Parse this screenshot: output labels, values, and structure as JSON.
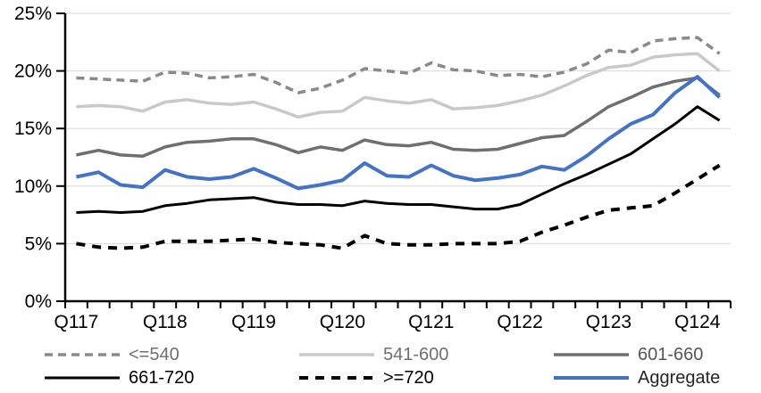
{
  "chart_data": {
    "type": "line",
    "title": "",
    "grid": true,
    "legend_position": "bottom",
    "axis_color": "#000000",
    "gridline_color": "#d9d9d9",
    "y_axis": {
      "min": 0,
      "max": 25,
      "step": 5,
      "format": "percent",
      "tick_values": [
        0,
        5,
        10,
        15,
        20,
        25
      ],
      "labels": [
        "0%",
        "5%",
        "10%",
        "15%",
        "20%",
        "25%"
      ]
    },
    "x_axis": {
      "tick_labels": [
        "Q117",
        "Q118",
        "Q119",
        "Q120",
        "Q121",
        "Q122",
        "Q123",
        "Q124"
      ],
      "label_every_n_points": 4
    },
    "categories": [
      "Q117",
      "Q217",
      "Q317",
      "Q417",
      "Q118",
      "Q218",
      "Q318",
      "Q418",
      "Q119",
      "Q219",
      "Q319",
      "Q419",
      "Q120",
      "Q220",
      "Q320",
      "Q420",
      "Q121",
      "Q221",
      "Q321",
      "Q421",
      "Q122",
      "Q222",
      "Q322",
      "Q422",
      "Q123",
      "Q223",
      "Q323",
      "Q423",
      "Q124",
      "Q224"
    ],
    "series": [
      {
        "name": "<=540",
        "color": "#8a8a8a",
        "label_color": "#6f6f6f",
        "dash": true,
        "width": 3.5,
        "dash_pattern": "9 6",
        "values": [
          19.4,
          19.3,
          19.2,
          19.1,
          19.9,
          19.8,
          19.4,
          19.5,
          19.7,
          19.0,
          18.1,
          18.5,
          19.2,
          20.2,
          20.0,
          19.8,
          20.7,
          20.1,
          20.0,
          19.6,
          19.7,
          19.5,
          19.9,
          20.6,
          21.8,
          21.6,
          22.6,
          22.8,
          22.9,
          21.5
        ]
      },
      {
        "name": "541-600",
        "color": "#c9c9c9",
        "label_color": "#6f6f6f",
        "dash": false,
        "width": 3.5,
        "dash_pattern": "",
        "values": [
          16.9,
          17.0,
          16.9,
          16.5,
          17.3,
          17.5,
          17.2,
          17.1,
          17.3,
          16.7,
          16.0,
          16.4,
          16.5,
          17.7,
          17.4,
          17.2,
          17.5,
          16.7,
          16.8,
          17.0,
          17.4,
          17.9,
          18.7,
          19.6,
          20.3,
          20.5,
          21.2,
          21.4,
          21.5,
          20.0
        ]
      },
      {
        "name": "601-660",
        "color": "#6f6f6f",
        "label_color": "#565656",
        "dash": false,
        "width": 3.5,
        "dash_pattern": "",
        "values": [
          12.7,
          13.1,
          12.7,
          12.6,
          13.4,
          13.8,
          13.9,
          14.1,
          14.1,
          13.6,
          12.9,
          13.4,
          13.1,
          14.0,
          13.6,
          13.5,
          13.8,
          13.2,
          13.1,
          13.2,
          13.7,
          14.2,
          14.4,
          15.6,
          16.9,
          17.7,
          18.6,
          19.1,
          19.4,
          17.9
        ]
      },
      {
        "name": "661-720",
        "color": "#000000",
        "label_color": "#000000",
        "dash": false,
        "width": 3,
        "dash_pattern": "",
        "values": [
          7.7,
          7.8,
          7.7,
          7.8,
          8.3,
          8.5,
          8.8,
          8.9,
          9.0,
          8.6,
          8.4,
          8.4,
          8.3,
          8.7,
          8.5,
          8.4,
          8.4,
          8.2,
          8.0,
          8.0,
          8.4,
          9.3,
          10.2,
          11.0,
          11.9,
          12.8,
          14.1,
          15.4,
          16.9,
          15.7
        ]
      },
      {
        "name": ">=720",
        "color": "#000000",
        "label_color": "#000000",
        "dash": true,
        "width": 4,
        "dash_pattern": "10 8",
        "values": [
          5.0,
          4.7,
          4.6,
          4.7,
          5.2,
          5.2,
          5.2,
          5.3,
          5.4,
          5.1,
          5.0,
          4.9,
          4.6,
          5.7,
          5.0,
          4.9,
          4.9,
          5.0,
          5.0,
          5.0,
          5.2,
          6.0,
          6.6,
          7.3,
          7.9,
          8.1,
          8.3,
          9.4,
          10.6,
          11.8
        ]
      },
      {
        "name": "Aggregate",
        "color": "#4472c4",
        "label_color": "#262626",
        "dash": false,
        "width": 4,
        "dash_pattern": "",
        "values": [
          10.8,
          11.2,
          10.1,
          9.9,
          11.4,
          10.8,
          10.6,
          10.8,
          11.5,
          10.7,
          9.8,
          10.1,
          10.5,
          12.0,
          10.9,
          10.8,
          11.8,
          10.9,
          10.5,
          10.7,
          11.0,
          11.7,
          11.4,
          12.6,
          14.1,
          15.4,
          16.2,
          18.1,
          19.5,
          17.7
        ]
      }
    ]
  }
}
